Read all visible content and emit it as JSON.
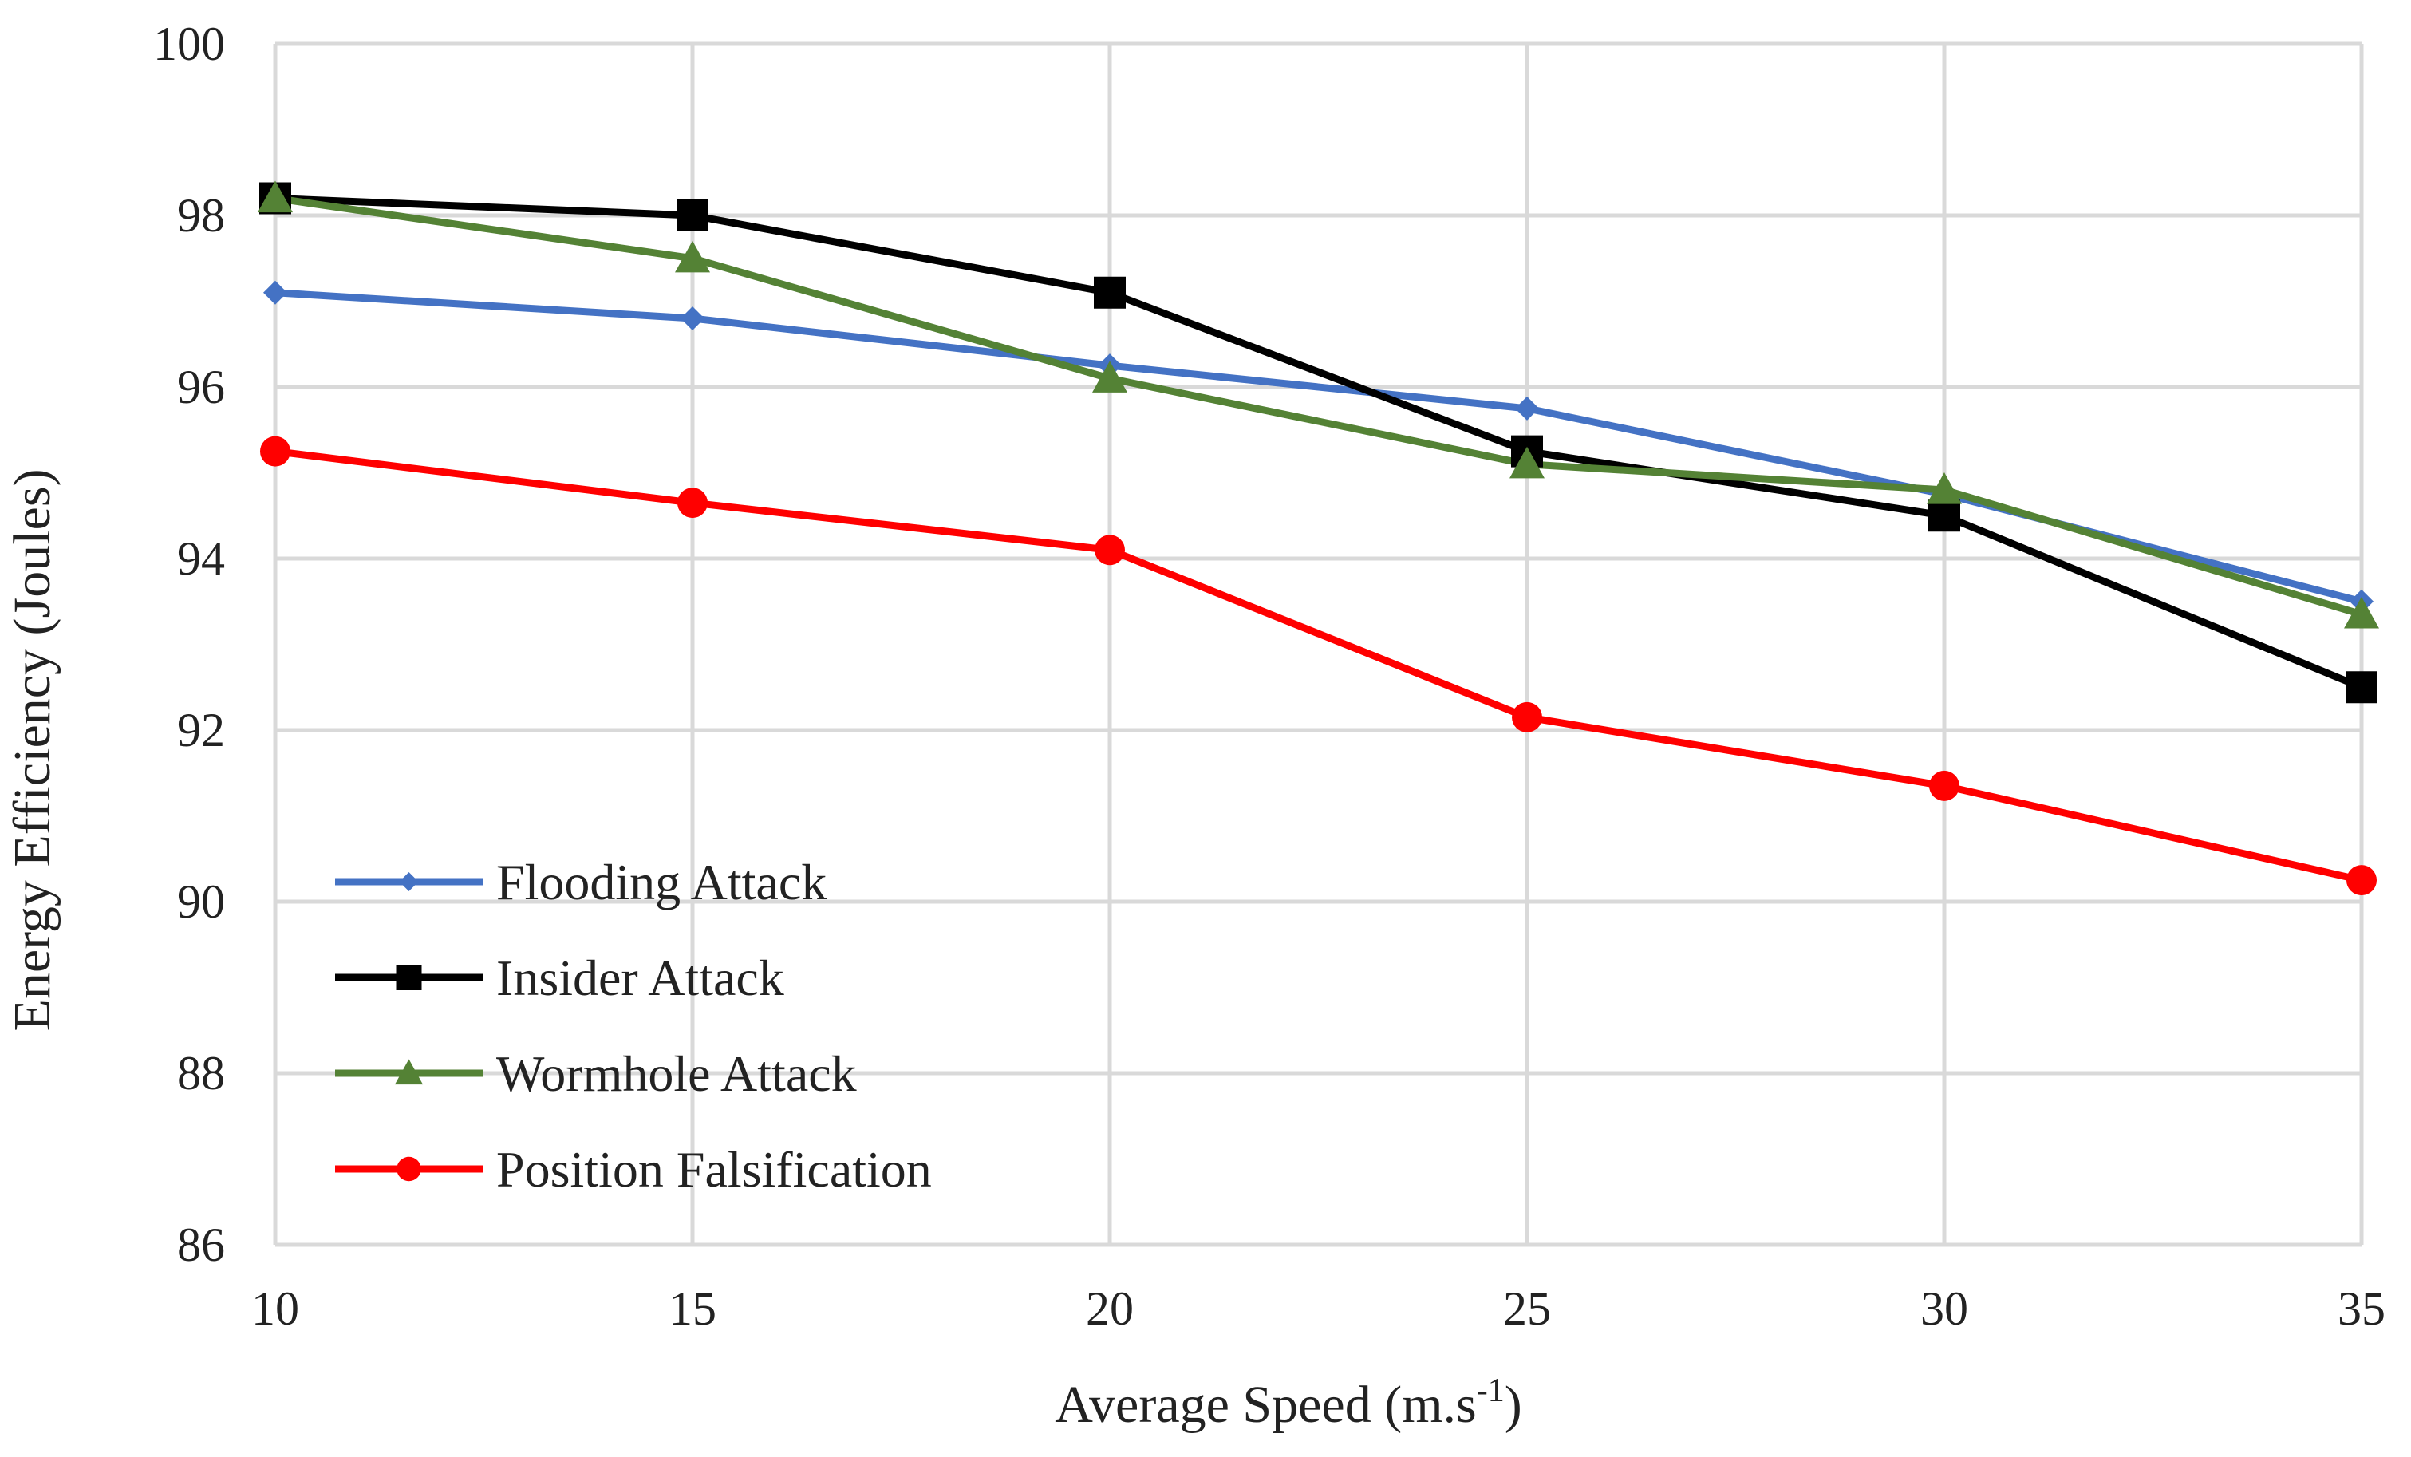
{
  "chart_data": {
    "type": "line",
    "title": "",
    "xlabel": "Average Speed (m.s",
    "xlabel_sup": "-1",
    "xlabel_close": ")",
    "ylabel": "Energy Efficiency  (Joules)",
    "x": [
      10,
      15,
      20,
      25,
      30,
      35
    ],
    "xlim": [
      10,
      35
    ],
    "ylim": [
      86,
      100
    ],
    "yticks": [
      86,
      88,
      90,
      92,
      94,
      96,
      98,
      100
    ],
    "grid": true,
    "legend_position": "bottom-left",
    "series": [
      {
        "name": "Flooding Attack",
        "color": "#4472C4",
        "marker": "diamond",
        "values": [
          97.1,
          96.8,
          96.25,
          95.75,
          94.75,
          93.5
        ]
      },
      {
        "name": "Insider Attack",
        "color": "#000000",
        "marker": "square",
        "values": [
          98.2,
          98.0,
          97.1,
          95.25,
          94.5,
          92.5
        ]
      },
      {
        "name": "Wormhole Attack",
        "color": "#548235",
        "marker": "triangle",
        "values": [
          98.2,
          97.5,
          96.1,
          95.1,
          94.8,
          93.35
        ]
      },
      {
        "name": "Position Falsification",
        "color": "#FF0000",
        "marker": "circle",
        "values": [
          95.25,
          94.65,
          94.1,
          92.15,
          91.35,
          90.25
        ]
      }
    ]
  }
}
